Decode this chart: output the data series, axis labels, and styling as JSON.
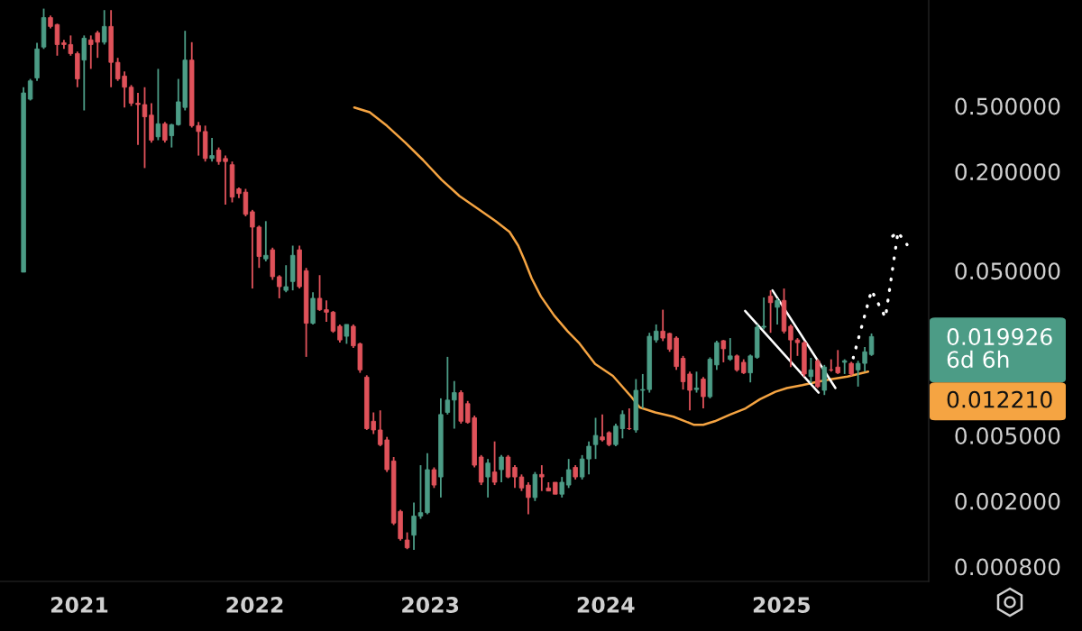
{
  "chart_data": {
    "type": "candlestick",
    "log": true,
    "x": [
      "2020-09-07",
      "2020-09-21",
      "2020-10-05",
      "2020-10-19",
      "2020-11-02",
      "2020-11-16",
      "2020-11-30",
      "2020-12-14",
      "2020-12-28",
      "2021-01-11",
      "2021-01-25",
      "2021-02-08",
      "2021-02-22",
      "2021-03-08",
      "2021-03-22",
      "2021-04-05",
      "2021-04-19",
      "2021-05-03",
      "2021-05-17",
      "2021-05-31",
      "2021-06-14",
      "2021-06-28",
      "2021-07-12",
      "2021-07-26",
      "2021-08-09",
      "2021-08-23",
      "2021-09-06",
      "2021-09-20",
      "2021-10-04",
      "2021-10-18",
      "2021-11-01",
      "2021-11-15",
      "2021-11-29",
      "2021-12-13",
      "2021-12-27",
      "2022-01-10",
      "2022-01-24",
      "2022-02-07",
      "2022-02-21",
      "2022-03-07",
      "2022-03-21",
      "2022-04-04",
      "2022-04-18",
      "2022-05-02",
      "2022-05-16",
      "2022-05-30",
      "2022-06-13",
      "2022-06-27",
      "2022-07-11",
      "2022-07-25",
      "2022-08-08",
      "2022-08-22",
      "2022-09-05",
      "2022-09-19",
      "2022-10-03",
      "2022-10-17",
      "2022-10-31",
      "2022-11-14",
      "2022-11-28",
      "2022-12-12",
      "2022-12-26",
      "2023-01-09",
      "2023-01-23",
      "2023-02-06",
      "2023-02-20",
      "2023-03-06",
      "2023-03-20",
      "2023-04-03",
      "2023-04-17",
      "2023-05-01",
      "2023-05-15",
      "2023-05-29",
      "2023-06-12",
      "2023-06-26",
      "2023-07-10",
      "2023-07-24",
      "2023-08-07",
      "2023-08-21",
      "2023-09-04",
      "2023-09-18",
      "2023-10-02",
      "2023-10-16",
      "2023-10-30",
      "2023-11-13",
      "2023-11-27",
      "2023-12-11",
      "2023-12-25",
      "2024-01-08",
      "2024-01-22",
      "2024-02-05",
      "2024-02-19",
      "2024-03-04",
      "2024-03-18",
      "2024-04-01",
      "2024-04-15",
      "2024-04-29",
      "2024-05-13",
      "2024-05-27",
      "2024-06-10",
      "2024-06-24",
      "2024-07-08",
      "2024-07-22",
      "2024-08-05",
      "2024-08-19",
      "2024-09-02",
      "2024-09-16",
      "2024-09-30",
      "2024-10-14",
      "2024-10-28",
      "2024-11-11",
      "2024-11-25",
      "2024-12-09",
      "2024-12-23",
      "2025-01-06",
      "2025-01-20",
      "2025-02-03",
      "2025-02-17",
      "2025-03-03",
      "2025-03-17",
      "2025-03-31",
      "2025-04-14",
      "2025-04-28",
      "2025-05-12",
      "2025-05-26",
      "2025-06-09",
      "2025-06-23",
      "2025-07-07"
    ],
    "ohlc": [
      [
        0.049,
        0.65,
        0.049,
        0.6
      ],
      [
        0.55,
        0.73,
        0.54,
        0.71
      ],
      [
        0.74,
        1.21,
        0.71,
        1.11
      ],
      [
        1.14,
        1.95,
        1.11,
        1.72
      ],
      [
        1.72,
        1.77,
        1.48,
        1.52
      ],
      [
        1.56,
        1.58,
        1.01,
        1.18
      ],
      [
        1.21,
        1.26,
        1.11,
        1.18
      ],
      [
        1.18,
        1.34,
        1.01,
        1.04
      ],
      [
        1.04,
        1.07,
        0.65,
        0.73
      ],
      [
        0.95,
        1.34,
        0.47,
        1.29
      ],
      [
        1.26,
        1.34,
        0.84,
        1.18
      ],
      [
        1.39,
        1.43,
        0.98,
        1.22
      ],
      [
        1.22,
        1.91,
        1.18,
        1.52
      ],
      [
        1.52,
        1.91,
        0.65,
        0.92
      ],
      [
        0.92,
        0.98,
        0.71,
        0.73
      ],
      [
        0.76,
        0.81,
        0.49,
        0.65
      ],
      [
        0.65,
        0.67,
        0.5,
        0.52
      ],
      [
        0.52,
        0.6,
        0.29,
        0.51
      ],
      [
        0.51,
        0.65,
        0.21,
        0.43
      ],
      [
        0.44,
        0.52,
        0.3,
        0.31
      ],
      [
        0.325,
        0.84,
        0.31,
        0.39
      ],
      [
        0.39,
        0.4,
        0.3,
        0.31
      ],
      [
        0.33,
        0.39,
        0.28,
        0.385
      ],
      [
        0.385,
        0.73,
        0.38,
        0.53
      ],
      [
        0.49,
        1.43,
        0.47,
        0.95
      ],
      [
        0.95,
        1.22,
        0.37,
        0.38
      ],
      [
        0.38,
        0.4,
        0.25,
        0.35
      ],
      [
        0.35,
        0.38,
        0.23,
        0.24
      ],
      [
        0.24,
        0.32,
        0.23,
        0.25
      ],
      [
        0.27,
        0.28,
        0.22,
        0.23
      ],
      [
        0.24,
        0.25,
        0.126,
        0.23
      ],
      [
        0.22,
        0.23,
        0.13,
        0.14
      ],
      [
        0.157,
        0.16,
        0.138,
        0.147
      ],
      [
        0.15,
        0.157,
        0.107,
        0.11
      ],
      [
        0.114,
        0.117,
        0.039,
        0.092
      ],
      [
        0.092,
        0.094,
        0.052,
        0.061
      ],
      [
        0.059,
        0.1,
        0.057,
        0.062
      ],
      [
        0.067,
        0.069,
        0.044,
        0.046
      ],
      [
        0.046,
        0.047,
        0.034,
        0.04
      ],
      [
        0.038,
        0.054,
        0.037,
        0.04
      ],
      [
        0.043,
        0.071,
        0.038,
        0.062
      ],
      [
        0.067,
        0.071,
        0.039,
        0.04
      ],
      [
        0.05,
        0.052,
        0.015,
        0.024
      ],
      [
        0.024,
        0.037,
        0.0236,
        0.034
      ],
      [
        0.034,
        0.047,
        0.0285,
        0.029
      ],
      [
        0.029,
        0.033,
        0.0245,
        0.028
      ],
      [
        0.028,
        0.0285,
        0.021,
        0.0215
      ],
      [
        0.023,
        0.0236,
        0.0183,
        0.019
      ],
      [
        0.02,
        0.0236,
        0.018,
        0.0236
      ],
      [
        0.023,
        0.0236,
        0.017,
        0.0175
      ],
      [
        0.018,
        0.0183,
        0.012,
        0.0125
      ],
      [
        0.0113,
        0.0116,
        0.0054,
        0.0055
      ],
      [
        0.0061,
        0.0069,
        0.0051,
        0.0054
      ],
      [
        0.0054,
        0.0071,
        0.0043,
        0.0044
      ],
      [
        0.0047,
        0.0049,
        0.003,
        0.0031
      ],
      [
        0.0035,
        0.0037,
        0.00143,
        0.00147
      ],
      [
        0.00173,
        0.00177,
        0.00115,
        0.00118
      ],
      [
        0.00116,
        0.00129,
        0.00102,
        0.00104
      ],
      [
        0.00124,
        0.00196,
        0.00101,
        0.00162
      ],
      [
        0.00162,
        0.0033,
        0.00156,
        0.0017
      ],
      [
        0.0017,
        0.0039,
        0.00166,
        0.0031
      ],
      [
        0.0031,
        0.0032,
        0.0024,
        0.0025
      ],
      [
        0.0028,
        0.0084,
        0.0021,
        0.0067
      ],
      [
        0.0069,
        0.015,
        0.0067,
        0.0082
      ],
      [
        0.0082,
        0.0107,
        0.0055,
        0.0091
      ],
      [
        0.0091,
        0.0094,
        0.0059,
        0.0061
      ],
      [
        0.0078,
        0.0081,
        0.0059,
        0.006
      ],
      [
        0.0064,
        0.0066,
        0.0032,
        0.0033
      ],
      [
        0.0037,
        0.0038,
        0.0025,
        0.0026
      ],
      [
        0.0028,
        0.0036,
        0.0021,
        0.0034
      ],
      [
        0.003,
        0.0046,
        0.0025,
        0.0026
      ],
      [
        0.0031,
        0.0038,
        0.0026,
        0.0037
      ],
      [
        0.0037,
        0.0038,
        0.00275,
        0.0028
      ],
      [
        0.0032,
        0.0033,
        0.0024,
        0.0028
      ],
      [
        0.0028,
        0.0029,
        0.0023,
        0.0024
      ],
      [
        0.0025,
        0.0026,
        0.00166,
        0.0021
      ],
      [
        0.0021,
        0.003,
        0.002,
        0.0029
      ],
      [
        0.0029,
        0.0033,
        0.0023,
        0.0028
      ],
      [
        0.0024,
        0.0026,
        0.0023,
        0.0023
      ],
      [
        0.0026,
        0.0026,
        0.0022,
        0.0022
      ],
      [
        0.0022,
        0.0028,
        0.0021,
        0.0026
      ],
      [
        0.0025,
        0.0036,
        0.0024,
        0.0031
      ],
      [
        0.0032,
        0.0033,
        0.0027,
        0.0028
      ],
      [
        0.0028,
        0.0038,
        0.0027,
        0.0036
      ],
      [
        0.0036,
        0.0046,
        0.0029,
        0.0043
      ],
      [
        0.0044,
        0.0064,
        0.0036,
        0.005
      ],
      [
        0.0049,
        0.0067,
        0.0046,
        0.0047
      ],
      [
        0.0052,
        0.0053,
        0.0043,
        0.0044
      ],
      [
        0.0044,
        0.0059,
        0.0043,
        0.0057
      ],
      [
        0.0055,
        0.0071,
        0.0048,
        0.0067
      ],
      [
        0.0055,
        0.0073,
        0.0054,
        0.0055
      ],
      [
        0.0054,
        0.011,
        0.0052,
        0.0094
      ],
      [
        0.0094,
        0.0118,
        0.0073,
        0.0095
      ],
      [
        0.0095,
        0.021,
        0.0091,
        0.02
      ],
      [
        0.019,
        0.0236,
        0.0183,
        0.0215
      ],
      [
        0.0215,
        0.029,
        0.0187,
        0.0195
      ],
      [
        0.0208,
        0.021,
        0.0161,
        0.0167
      ],
      [
        0.0195,
        0.02,
        0.0125,
        0.0131
      ],
      [
        0.0147,
        0.0152,
        0.0095,
        0.0106
      ],
      [
        0.0118,
        0.0122,
        0.0071,
        0.0094
      ],
      [
        0.0095,
        0.0122,
        0.0091,
        0.0097
      ],
      [
        0.011,
        0.0113,
        0.0073,
        0.0086
      ],
      [
        0.0086,
        0.0149,
        0.0084,
        0.0145
      ],
      [
        0.0134,
        0.0188,
        0.0125,
        0.0183
      ],
      [
        0.0188,
        0.019,
        0.0139,
        0.0168
      ],
      [
        0.0145,
        0.0195,
        0.0142,
        0.0152
      ],
      [
        0.0152,
        0.0155,
        0.0122,
        0.0125
      ],
      [
        0.0139,
        0.0145,
        0.0118,
        0.012
      ],
      [
        0.012,
        0.0155,
        0.0105,
        0.0152
      ],
      [
        0.0149,
        0.0236,
        0.0146,
        0.0227
      ],
      [
        0.0227,
        0.0344,
        0.022,
        0.023
      ],
      [
        0.035,
        0.038,
        0.021,
        0.032
      ],
      [
        0.03,
        0.034,
        0.0236,
        0.033
      ],
      [
        0.033,
        0.039,
        0.0208,
        0.0215
      ],
      [
        0.023,
        0.0236,
        0.013,
        0.019
      ],
      [
        0.019,
        0.0195,
        0.0152,
        0.0183
      ],
      [
        0.0183,
        0.0187,
        0.0114,
        0.0118
      ],
      [
        0.0114,
        0.0148,
        0.0104,
        0.0125
      ],
      [
        0.0142,
        0.0145,
        0.0097,
        0.0099
      ],
      [
        0.0094,
        0.0134,
        0.0088,
        0.013
      ],
      [
        0.0125,
        0.0145,
        0.0122,
        0.0125
      ],
      [
        0.013,
        0.0165,
        0.0118,
        0.012
      ],
      [
        0.0139,
        0.0145,
        0.0118,
        0.0142
      ],
      [
        0.0137,
        0.014,
        0.0115,
        0.0118
      ],
      [
        0.0125,
        0.0142,
        0.0099,
        0.0137
      ],
      [
        0.0137,
        0.0172,
        0.0122,
        0.0161
      ],
      [
        0.0155,
        0.0208,
        0.0152,
        0.019926
      ]
    ],
    "colors": [
      "#4c9c86",
      "#4c9c86",
      "#4c9c86",
      "#4c9c86",
      "#e0525a",
      "#e0525a",
      "#e0525a",
      "#e0525a",
      "#e0525a",
      "#4c9c86",
      "#e0525a",
      "#e0525a",
      "#4c9c86",
      "#e0525a",
      "#e0525a",
      "#e0525a",
      "#e0525a",
      "#e0525a",
      "#e0525a",
      "#e0525a",
      "#4c9c86",
      "#e0525a",
      "#4c9c86",
      "#4c9c86",
      "#4c9c86",
      "#e0525a",
      "#e0525a",
      "#e0525a",
      "#4c9c86",
      "#e0525a",
      "#e0525a",
      "#e0525a",
      "#e0525a",
      "#e0525a",
      "#e0525a",
      "#e0525a",
      "#4c9c86",
      "#e0525a",
      "#e0525a",
      "#4c9c86",
      "#4c9c86",
      "#e0525a",
      "#e0525a",
      "#4c9c86",
      "#e0525a",
      "#e0525a",
      "#e0525a",
      "#e0525a",
      "#4c9c86",
      "#e0525a",
      "#e0525a",
      "#e0525a",
      "#e0525a",
      "#e0525a",
      "#e0525a",
      "#e0525a",
      "#e0525a",
      "#e0525a",
      "#4c9c86",
      "#4c9c86",
      "#4c9c86",
      "#e0525a",
      "#4c9c86",
      "#4c9c86",
      "#4c9c86",
      "#e0525a",
      "#e0525a",
      "#e0525a",
      "#e0525a",
      "#4c9c86",
      "#e0525a",
      "#4c9c86",
      "#e0525a",
      "#e0525a",
      "#e0525a",
      "#e0525a",
      "#4c9c86",
      "#e0525a",
      "#e0525a",
      "#e0525a",
      "#4c9c86",
      "#4c9c86",
      "#e0525a",
      "#4c9c86",
      "#4c9c86",
      "#4c9c86",
      "#e0525a",
      "#e0525a",
      "#4c9c86",
      "#4c9c86",
      "#e0525a",
      "#4c9c86",
      "#4c9c86",
      "#4c9c86",
      "#4c9c86",
      "#e0525a",
      "#e0525a",
      "#e0525a",
      "#e0525a",
      "#e0525a",
      "#4c9c86",
      "#e0525a",
      "#4c9c86",
      "#4c9c86",
      "#e0525a",
      "#4c9c86",
      "#e0525a",
      "#e0525a",
      "#4c9c86",
      "#4c9c86",
      "#4c9c86",
      "#e0525a",
      "#4c9c86",
      "#e0525a",
      "#e0525a",
      "#e0525a",
      "#e0525a",
      "#4c9c86",
      "#e0525a",
      "#4c9c86",
      "#e0525a",
      "#e0525a",
      "#4c9c86",
      "#e0525a",
      "#4c9c86",
      "#4c9c86",
      "#4c9c86"
    ],
    "series": [
      {
        "type": "line",
        "color": "#f5a442",
        "line_style": "solid",
        "x": [
          "2022-07-27",
          "2022-08-28",
          "2022-10-03",
          "2022-11-10",
          "2022-12-17",
          "2023-01-25",
          "2023-03-03",
          "2023-04-10",
          "2023-05-17",
          "2023-06-15",
          "2023-07-03",
          "2023-07-16",
          "2023-07-31",
          "2023-08-19",
          "2023-09-16",
          "2023-10-14",
          "2023-11-06",
          "2023-12-10",
          "2024-01-16",
          "2024-02-23",
          "2024-03-12",
          "2024-04-13",
          "2024-05-21",
          "2024-07-03",
          "2024-07-22",
          "2024-08-15",
          "2024-09-16",
          "2024-10-18",
          "2024-11-17",
          "2024-12-19",
          "2025-01-12",
          "2025-02-13",
          "2025-03-17",
          "2025-04-16",
          "2025-05-18",
          "2025-06-30"
        ],
        "values": [
          0.49,
          0.458,
          0.379,
          0.3,
          0.235,
          0.178,
          0.142,
          0.119,
          0.1,
          0.086,
          0.071,
          0.058,
          0.045,
          0.035,
          0.0267,
          0.0214,
          0.0183,
          0.0136,
          0.0115,
          0.0086,
          0.0074,
          0.0069,
          0.0065,
          0.0058,
          0.0058,
          0.0061,
          0.0067,
          0.0073,
          0.0083,
          0.0092,
          0.0097,
          0.0101,
          0.0106,
          0.011,
          0.0114,
          0.01221
        ]
      },
      {
        "type": "line",
        "color": "#ffffff",
        "line_style": "solid",
        "x": [
          "2024-10-17",
          "2025-03-19"
        ],
        "values": [
          0.0285,
          0.0091
        ]
      },
      {
        "type": "line",
        "color": "#ffffff",
        "line_style": "solid",
        "x": [
          "2024-12-13",
          "2025-04-23"
        ],
        "values": [
          0.038,
          0.0097
        ]
      },
      {
        "type": "line",
        "color": "#ffffff",
        "line_style": "dotted",
        "x": [
          "2025-05-30",
          "2025-07-07",
          "2025-08-05",
          "2025-08-31",
          "2025-08-12",
          "2025-08-31",
          "2025-09-19"
        ],
        "values": [
          0.0148,
          0.038,
          0.026,
          0.0855,
          0.078,
          0.0855,
          0.072
        ]
      }
    ],
    "xlim": [
      "2020-07-20",
      "2025-11-03"
    ],
    "xticks": [
      "2021",
      "2022",
      "2023",
      "2024",
      "2025"
    ],
    "ylim": [
      0.00065,
      2.2
    ],
    "yticks": [
      {
        "value": 0.5,
        "label": "0.500000"
      },
      {
        "value": 0.2,
        "label": "0.200000"
      },
      {
        "value": 0.05,
        "label": "0.050000"
      },
      {
        "value": 0.005,
        "label": "0.005000"
      },
      {
        "value": 0.002,
        "label": "0.002000"
      },
      {
        "value": 0.0008,
        "label": "0.000800"
      }
    ],
    "annotations": [
      "0.019926\n6d 6h",
      "0.012210"
    ]
  }
}
